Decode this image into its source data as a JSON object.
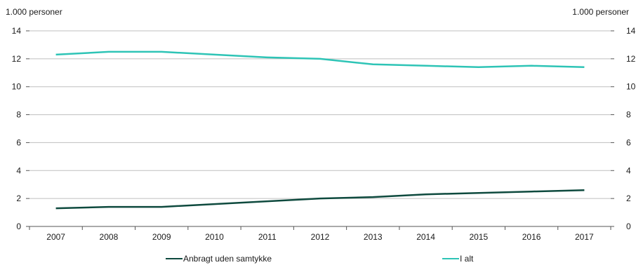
{
  "chart_data": {
    "type": "line",
    "left_axis_unit": "1.000 personer",
    "right_axis_unit": "1.000 personer",
    "categories": [
      "2007",
      "2008",
      "2009",
      "2010",
      "2011",
      "2012",
      "2013",
      "2014",
      "2015",
      "2016",
      "2017"
    ],
    "ylim": [
      0,
      14
    ],
    "yticks": [
      0,
      2,
      4,
      6,
      8,
      10,
      12,
      14
    ],
    "grid": true,
    "legend_position": "bottom",
    "series": [
      {
        "name": "Anbragt uden samtykke",
        "color": "#0e4a3e",
        "values": [
          1.3,
          1.4,
          1.4,
          1.6,
          1.8,
          2.0,
          2.1,
          2.3,
          2.4,
          2.5,
          2.6
        ]
      },
      {
        "name": "I alt",
        "color": "#2ec4b6",
        "values": [
          12.3,
          12.5,
          12.5,
          12.3,
          12.1,
          12.0,
          11.6,
          11.5,
          11.4,
          11.5,
          11.4
        ]
      }
    ]
  }
}
